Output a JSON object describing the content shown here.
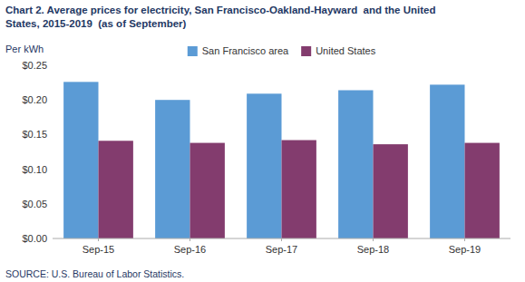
{
  "chart_data": {
    "type": "bar",
    "title": "Chart 2. Average prices for electricity, San Francisco-Oakland-Hayward  and the United",
    "subtitle": "States, 2015-2019  (as of September)",
    "ylabel": "Per kWh",
    "source": "SOURCE: U.S. Bureau of Labor Statistics.",
    "categories": [
      "Sep-15",
      "Sep-16",
      "Sep-17",
      "Sep-18",
      "Sep-19"
    ],
    "series": [
      {
        "name": "San Francisco area",
        "color": "#5B9BD5",
        "values": [
          0.226,
          0.2,
          0.209,
          0.214,
          0.222
        ]
      },
      {
        "name": "United States",
        "color": "#833C6E",
        "values": [
          0.141,
          0.138,
          0.142,
          0.136,
          0.138
        ]
      }
    ],
    "ylim": [
      0.0,
      0.25
    ],
    "yticks": [
      {
        "value": 0.0,
        "label": "$0.00"
      },
      {
        "value": 0.05,
        "label": "$0.05"
      },
      {
        "value": 0.1,
        "label": "$0.10"
      },
      {
        "value": 0.15,
        "label": "$0.15"
      },
      {
        "value": 0.2,
        "label": "$0.20"
      },
      {
        "value": 0.25,
        "label": "$0.25"
      }
    ],
    "legend": "top",
    "grid": false
  }
}
